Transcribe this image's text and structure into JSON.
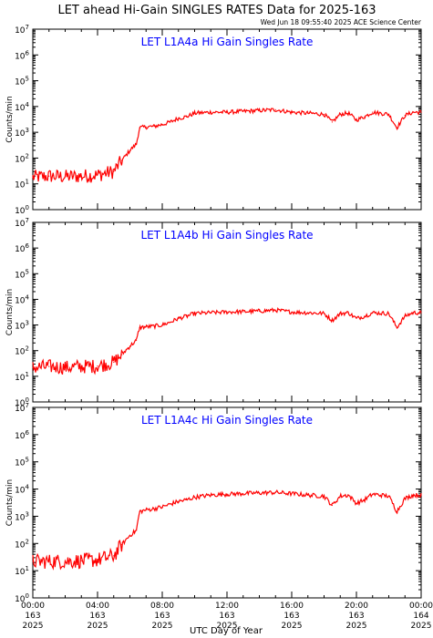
{
  "title": "LET ahead Hi-Gain SINGLES RATES Data for 2025-163",
  "timestamp": "Wed Jun 18 09:55:40 2025 ACE Science Center",
  "xlabel": "UTC Day of Year",
  "ylabel": "Counts/min",
  "colors": {
    "series": "#ff0000",
    "panel_title": "#0000ff",
    "axis": "#000000"
  },
  "x_ticks": [
    {
      "time": "00:00",
      "day": "163",
      "year": "2025"
    },
    {
      "time": "04:00",
      "day": "163",
      "year": "2025"
    },
    {
      "time": "08:00",
      "day": "163",
      "year": "2025"
    },
    {
      "time": "12:00",
      "day": "163",
      "year": "2025"
    },
    {
      "time": "16:00",
      "day": "163",
      "year": "2025"
    },
    {
      "time": "20:00",
      "day": "163",
      "year": "2025"
    },
    {
      "time": "00:00",
      "day": "164",
      "year": "2025"
    }
  ],
  "y_ticks": [
    {
      "base": "10",
      "exp": "0"
    },
    {
      "base": "10",
      "exp": "1"
    },
    {
      "base": "10",
      "exp": "2"
    },
    {
      "base": "10",
      "exp": "3"
    },
    {
      "base": "10",
      "exp": "4"
    },
    {
      "base": "10",
      "exp": "5"
    },
    {
      "base": "10",
      "exp": "6"
    },
    {
      "base": "10",
      "exp": "7"
    }
  ],
  "chart_data": [
    {
      "type": "line",
      "title": "LET L1A4a Hi Gain Singles Rate",
      "xlabel": "",
      "ylabel": "Counts/min",
      "y_scale": "log",
      "ylim": [
        1,
        10000000
      ],
      "xlim": [
        0,
        24
      ],
      "x_unit": "hours UTC, day 163",
      "series": [
        {
          "x": [
            0,
            1,
            2,
            3,
            4,
            5,
            5.5,
            6,
            6.4,
            6.6,
            7,
            7.5,
            8,
            8.5,
            9,
            9.5,
            10,
            11,
            12,
            13,
            14,
            15,
            16,
            17,
            18,
            18.5,
            19,
            19.5,
            20,
            20.5,
            21,
            22,
            22.5,
            23,
            23.5,
            24
          ],
          "y": [
            18,
            20,
            19,
            20,
            22,
            30,
            80,
            200,
            350,
            1500,
            1600,
            1700,
            2000,
            2500,
            3500,
            4000,
            5500,
            6000,
            6000,
            6500,
            7000,
            7500,
            6000,
            5500,
            5000,
            2500,
            5000,
            5500,
            3000,
            4000,
            6000,
            5000,
            1500,
            4500,
            6000,
            6000
          ]
        }
      ]
    },
    {
      "type": "line",
      "title": "LET L1A4b Hi Gain Singles Rate",
      "xlabel": "",
      "ylabel": "Counts/min",
      "y_scale": "log",
      "ylim": [
        1,
        10000000
      ],
      "xlim": [
        0,
        24
      ],
      "x_unit": "hours UTC, day 163",
      "series": [
        {
          "x": [
            0,
            1,
            2,
            3,
            4,
            5,
            5.5,
            6,
            6.4,
            6.6,
            7,
            7.5,
            8,
            8.5,
            9,
            9.5,
            10,
            11,
            12,
            13,
            14,
            15,
            16,
            17,
            18,
            18.5,
            19,
            19.5,
            20,
            20.5,
            21,
            22,
            22.5,
            23,
            23.5,
            24
          ],
          "y": [
            22,
            24,
            22,
            24,
            25,
            35,
            70,
            150,
            250,
            800,
            850,
            900,
            1000,
            1300,
            1800,
            2200,
            2800,
            3000,
            3200,
            3300,
            3500,
            3800,
            3200,
            3000,
            2800,
            1500,
            2800,
            3000,
            1800,
            2200,
            3000,
            2800,
            800,
            2200,
            3000,
            3000
          ]
        }
      ]
    },
    {
      "type": "line",
      "title": "LET L1A4c Hi Gain Singles Rate",
      "xlabel": "UTC Day of Year",
      "ylabel": "Counts/min",
      "y_scale": "log",
      "ylim": [
        1,
        10000000
      ],
      "xlim": [
        0,
        24
      ],
      "x_unit": "hours UTC, day 163",
      "series": [
        {
          "x": [
            0,
            1,
            2,
            3,
            4,
            5,
            5.5,
            6,
            6.4,
            6.6,
            7,
            7.5,
            8,
            8.5,
            9,
            9.5,
            10,
            11,
            12,
            13,
            14,
            15,
            16,
            17,
            18,
            18.5,
            19,
            19.5,
            20,
            20.5,
            21,
            22,
            22.5,
            23,
            23.5,
            24
          ],
          "y": [
            22,
            22,
            22,
            23,
            25,
            35,
            90,
            200,
            300,
            1500,
            1700,
            1900,
            2200,
            2800,
            3500,
            4000,
            5000,
            6000,
            6500,
            6800,
            7200,
            7500,
            6800,
            6000,
            5500,
            2500,
            5500,
            6000,
            3000,
            4000,
            6500,
            5500,
            1500,
            4500,
            6000,
            6000
          ]
        }
      ]
    }
  ]
}
